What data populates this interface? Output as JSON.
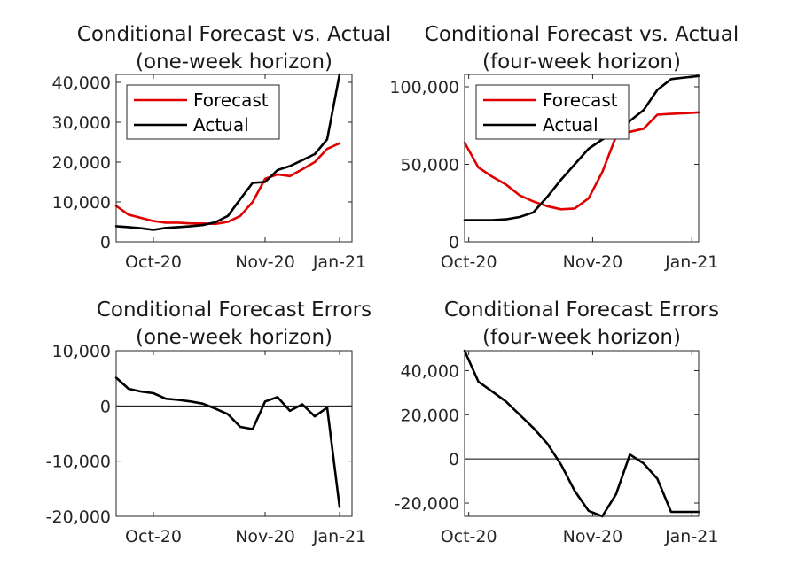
{
  "chart_data": [
    {
      "type": "line",
      "title": [
        "Conditional Forecast vs. Actual",
        "(one-week horizon)"
      ],
      "xlabel": "",
      "ylabel": "",
      "x": [
        0,
        1,
        2,
        3,
        4,
        5,
        6,
        7,
        8,
        9,
        10,
        11,
        12,
        13,
        14,
        15,
        16,
        17,
        18
      ],
      "x_tick_labels": [
        {
          "x": 3,
          "label": "Oct-20"
        },
        {
          "x": 12,
          "label": "Nov-20"
        },
        {
          "x": 18,
          "label": "Jan-21"
        }
      ],
      "xlim": [
        0,
        19
      ],
      "ylim": [
        0,
        42000
      ],
      "y_ticks": [
        0,
        10000,
        20000,
        30000,
        40000
      ],
      "y_tick_labels": [
        "0",
        "10,000",
        "20,000",
        "30,000",
        "40,000"
      ],
      "legend": {
        "placement": "top-left",
        "entries": [
          "Forecast",
          "Actual"
        ]
      },
      "series": [
        {
          "name": "Forecast",
          "color": "#e00000",
          "values": [
            9000,
            6800,
            6000,
            5200,
            4800,
            4800,
            4600,
            4600,
            4500,
            5000,
            6500,
            10000,
            15800,
            16900,
            16500,
            18200,
            20000,
            23300,
            24700
          ]
        },
        {
          "name": "Actual",
          "color": "#000000",
          "values": [
            3900,
            3700,
            3400,
            3000,
            3500,
            3700,
            3900,
            4200,
            4900,
            6500,
            10700,
            14800,
            15000,
            18000,
            19000,
            20500,
            22000,
            25700,
            42000
          ]
        }
      ]
    },
    {
      "type": "line",
      "title": [
        "Conditional Forecast vs. Actual",
        "(four-week horizon)"
      ],
      "xlabel": "",
      "ylabel": "",
      "x": [
        0,
        1,
        2,
        3,
        4,
        5,
        6,
        7,
        8,
        9,
        10,
        11,
        12,
        13,
        14,
        15,
        16,
        17
      ],
      "x_tick_labels": [
        {
          "x": 0.3,
          "label": "Oct-20"
        },
        {
          "x": 9.3,
          "label": "Nov-20"
        },
        {
          "x": 16.5,
          "label": "Jan-21"
        }
      ],
      "xlim": [
        0,
        17
      ],
      "ylim": [
        0,
        108000
      ],
      "y_ticks": [
        0,
        50000,
        100000
      ],
      "y_tick_labels": [
        "0",
        "50,000",
        "100,000"
      ],
      "legend": {
        "placement": "top-left",
        "entries": [
          "Forecast",
          "Actual"
        ]
      },
      "series": [
        {
          "name": "Forecast",
          "color": "#e00000",
          "values": [
            64000,
            48000,
            42000,
            37000,
            30000,
            26000,
            23000,
            21000,
            21500,
            28000,
            45000,
            68000,
            71000,
            73000,
            82000,
            82500,
            83000,
            83500
          ]
        },
        {
          "name": "Actual",
          "color": "#000000",
          "values": [
            14000,
            14000,
            14000,
            14500,
            16000,
            19000,
            29000,
            40000,
            50000,
            60000,
            66000,
            70000,
            78000,
            85000,
            98000,
            105000,
            106000,
            107000
          ]
        }
      ]
    },
    {
      "type": "line",
      "title": [
        "Conditional Forecast Errors",
        "(one-week horizon)"
      ],
      "xlabel": "",
      "ylabel": "",
      "x": [
        0,
        1,
        2,
        3,
        4,
        5,
        6,
        7,
        8,
        9,
        10,
        11,
        12,
        13,
        14,
        15,
        16,
        17,
        18
      ],
      "x_tick_labels": [
        {
          "x": 3,
          "label": "Oct-20"
        },
        {
          "x": 12,
          "label": "Nov-20"
        },
        {
          "x": 18,
          "label": "Jan-21"
        }
      ],
      "xlim": [
        0,
        19
      ],
      "ylim": [
        -20000,
        10000
      ],
      "y_ticks": [
        -20000,
        -10000,
        0,
        10000
      ],
      "y_tick_labels": [
        "-20,000",
        "-10,000",
        "0",
        "10,000"
      ],
      "zero_line": true,
      "series": [
        {
          "name": "",
          "color": "#000000",
          "values": [
            5100,
            3100,
            2600,
            2300,
            1300,
            1100,
            800,
            400,
            -500,
            -1500,
            -3800,
            -4200,
            800,
            1600,
            -900,
            300,
            -1900,
            -300,
            -18300
          ]
        }
      ]
    },
    {
      "type": "line",
      "title": [
        "Conditional Forecast Errors",
        "(four-week horizon)"
      ],
      "xlabel": "",
      "ylabel": "",
      "x": [
        0,
        1,
        2,
        3,
        4,
        5,
        6,
        7,
        8,
        9,
        10,
        11,
        12,
        13,
        14,
        15,
        16,
        17
      ],
      "x_tick_labels": [
        {
          "x": 0.3,
          "label": "Oct-20"
        },
        {
          "x": 9.3,
          "label": "Nov-20"
        },
        {
          "x": 16.5,
          "label": "Jan-21"
        }
      ],
      "xlim": [
        0,
        17
      ],
      "ylim": [
        -26000,
        49000
      ],
      "y_ticks": [
        -20000,
        0,
        20000,
        40000
      ],
      "y_tick_labels": [
        "-20,000",
        "0",
        "20,000",
        "40,000"
      ],
      "zero_line": true,
      "series": [
        {
          "name": "",
          "color": "#000000",
          "values": [
            49000,
            35000,
            30500,
            26000,
            20000,
            14000,
            7000,
            -2500,
            -14500,
            -23500,
            -26000,
            -16000,
            2000,
            -2000,
            -9000,
            -24000,
            -24000,
            -24000
          ]
        }
      ]
    }
  ]
}
